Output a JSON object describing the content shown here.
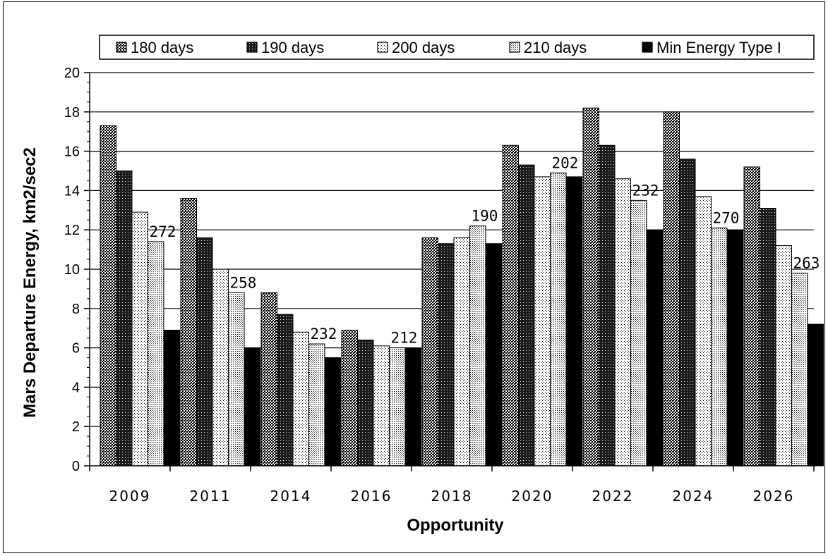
{
  "chart_data": {
    "type": "bar",
    "title": "",
    "xlabel": "Opportunity",
    "ylabel": "Mars Departure Energy, km2/sec2",
    "ylim": [
      0,
      20
    ],
    "yticks": [
      0,
      2,
      4,
      6,
      8,
      10,
      12,
      14,
      16,
      18,
      20
    ],
    "grid": "horizontal",
    "legend_position": "top",
    "categories": [
      "2009",
      "2011",
      "2014",
      "2016",
      "2018",
      "2020",
      "2022",
      "2024",
      "2026"
    ],
    "series": [
      {
        "name": "180 days",
        "pattern": "dense-dots",
        "values": [
          17.3,
          13.6,
          8.8,
          6.9,
          11.6,
          16.3,
          18.2,
          18.0,
          15.2
        ]
      },
      {
        "name": "190 days",
        "pattern": "dark-dots",
        "values": [
          15.0,
          11.6,
          7.7,
          6.4,
          11.3,
          15.3,
          16.3,
          15.6,
          13.1
        ]
      },
      {
        "name": "200 days",
        "pattern": "light-dots",
        "values": [
          12.9,
          10.0,
          6.8,
          6.1,
          11.6,
          14.7,
          14.6,
          13.7,
          11.2
        ]
      },
      {
        "name": "210 days",
        "pattern": "medium-dots",
        "values": [
          11.4,
          8.8,
          6.2,
          6.0,
          12.2,
          14.9,
          13.5,
          12.1,
          9.8
        ]
      },
      {
        "name": "Min Energy Type I",
        "pattern": "solid-black",
        "values": [
          6.9,
          6.0,
          5.5,
          6.0,
          11.3,
          14.7,
          12.0,
          12.0,
          7.2
        ]
      }
    ],
    "annotations": [
      "272",
      "258",
      "232",
      "212",
      "190",
      "202",
      "232",
      "270",
      "263"
    ],
    "colors": {
      "dark": "#111111",
      "light": "#ffffff",
      "frame": "#000000"
    }
  }
}
